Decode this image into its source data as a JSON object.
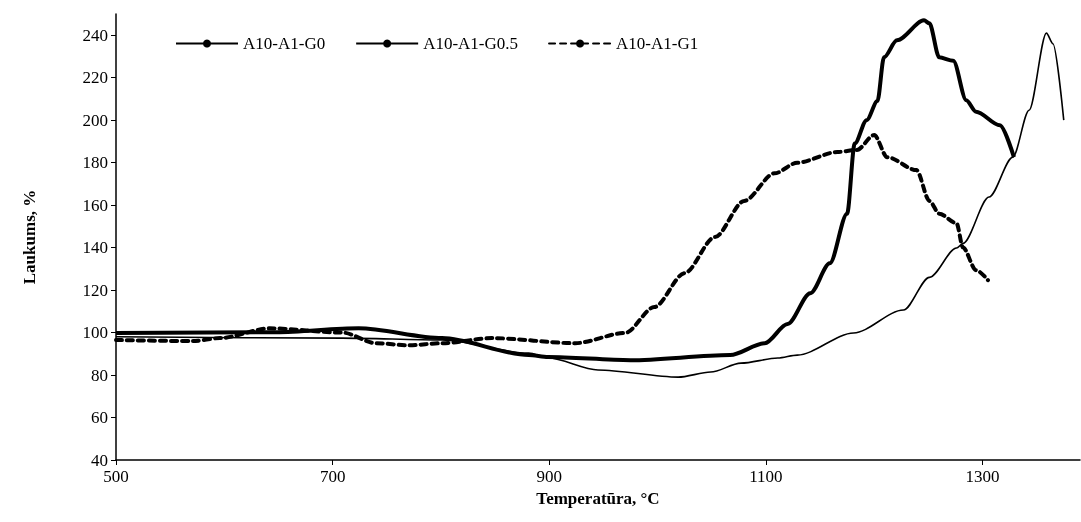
{
  "chart_data": {
    "type": "line",
    "xlabel": "Temperatūra, °C",
    "ylabel": "Laukums, %",
    "xlim": [
      500,
      1390
    ],
    "xticks": [
      500,
      700,
      900,
      1100,
      1300
    ],
    "ylim": [
      40,
      250
    ],
    "yticks": [
      40,
      60,
      80,
      100,
      120,
      140,
      160,
      180,
      200,
      220,
      240
    ],
    "grid": false,
    "legend": "top left",
    "marker": "none",
    "series": [
      {
        "name": "A10-A1-G0",
        "color": "#000000",
        "line_style": "solid",
        "x": [
          500,
          709,
          801,
          881,
          899,
          945,
          1019,
          1049,
          1077,
          1111,
          1129,
          1181,
          1227,
          1251,
          1276,
          1282,
          1306,
          1328,
          1343,
          1359,
          1365,
          1375
        ],
        "values": [
          98,
          97.4,
          96.5,
          90.3,
          88,
          82.4,
          79,
          81.4,
          85.6,
          88,
          89.4,
          99.8,
          110.6,
          126,
          139.8,
          142,
          163.8,
          182.6,
          204.7,
          241,
          236,
          200
        ]
      },
      {
        "name": "A10-A1-G0.5",
        "color": "#000000",
        "line_style": "solid",
        "x": [
          500,
          648,
          724,
          801,
          881,
          899,
          975,
          1067,
          1099,
          1120,
          1141,
          1159,
          1175,
          1182,
          1193,
          1203,
          1209,
          1221,
          1246,
          1251,
          1260,
          1273,
          1285,
          1294,
          1316,
          1329
        ],
        "values": [
          99.8,
          100.2,
          102,
          97.4,
          89.4,
          88.5,
          87,
          89.4,
          95,
          104,
          118.5,
          132.6,
          156,
          189,
          200,
          209,
          229.6,
          237.6,
          247,
          245.6,
          229.6,
          228,
          209.4,
          204,
          197.6,
          182.6
        ]
      },
      {
        "name": "A10-A1-G1",
        "color": "#000000",
        "line_style": "dashed",
        "x": [
          500,
          571,
          596,
          642,
          709,
          740,
          770,
          801,
          847,
          924,
          970,
          997,
          1025,
          1053,
          1080,
          1108,
          1129,
          1166,
          1184,
          1200,
          1212,
          1239,
          1251,
          1260,
          1276,
          1282,
          1294,
          1305
        ],
        "values": [
          96.5,
          96,
          97.4,
          102,
          100,
          95,
          94,
          95,
          97.4,
          95,
          99.8,
          112,
          128,
          145,
          162,
          175,
          180,
          185,
          186,
          193,
          182.6,
          176.5,
          162,
          156,
          151.5,
          140,
          129.4,
          124.7
        ]
      }
    ]
  }
}
